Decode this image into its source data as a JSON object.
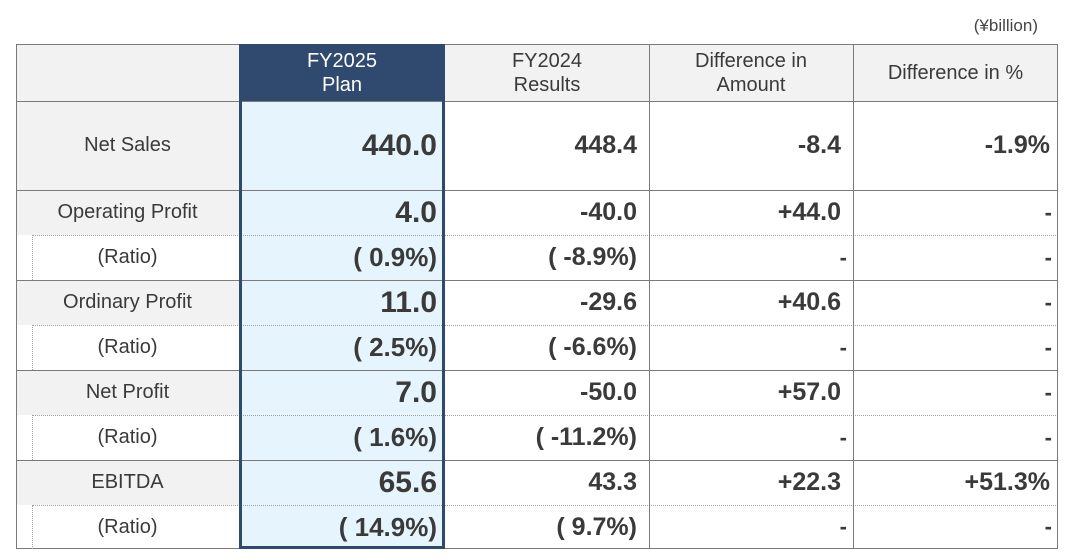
{
  "unit": "(¥billion)",
  "headers": {
    "plan": [
      "FY2025",
      "Plan"
    ],
    "results": [
      "FY2024",
      "Results"
    ],
    "diff_amount": [
      "Difference in",
      "Amount"
    ],
    "diff_pct": "Difference in %"
  },
  "rows": {
    "net_sales": {
      "label": "Net Sales",
      "plan": "440.0",
      "results": "448.4",
      "diff_amount": "-8.4",
      "diff_pct": "-1.9%"
    },
    "operating_profit": {
      "label": "Operating Profit",
      "plan": "4.0",
      "results": "-40.0",
      "diff_amount": "+44.0",
      "diff_pct": "-"
    },
    "operating_ratio": {
      "label": "(Ratio)",
      "plan": "( 0.9%)",
      "results": "( -8.9%)",
      "diff_amount": "-",
      "diff_pct": "-"
    },
    "ordinary_profit": {
      "label": "Ordinary Profit",
      "plan": "11.0",
      "results": "-29.6",
      "diff_amount": "+40.6",
      "diff_pct": "-"
    },
    "ordinary_ratio": {
      "label": "(Ratio)",
      "plan": "( 2.5%)",
      "results": "( -6.6%)",
      "diff_amount": "-",
      "diff_pct": "-"
    },
    "net_profit": {
      "label": "Net Profit",
      "plan": "7.0",
      "results": "-50.0",
      "diff_amount": "+57.0",
      "diff_pct": "-"
    },
    "net_ratio": {
      "label": "(Ratio)",
      "plan": "( 1.6%)",
      "results": "( -11.2%)",
      "diff_amount": "-",
      "diff_pct": "-"
    },
    "ebitda": {
      "label": "EBITDA",
      "plan": "65.6",
      "results": "43.3",
      "diff_amount": "+22.3",
      "diff_pct": "+51.3%"
    },
    "ebitda_ratio": {
      "label": "(Ratio)",
      "plan": "( 14.9%)",
      "results": "( 9.7%)",
      "diff_amount": "-",
      "diff_pct": "-"
    }
  }
}
